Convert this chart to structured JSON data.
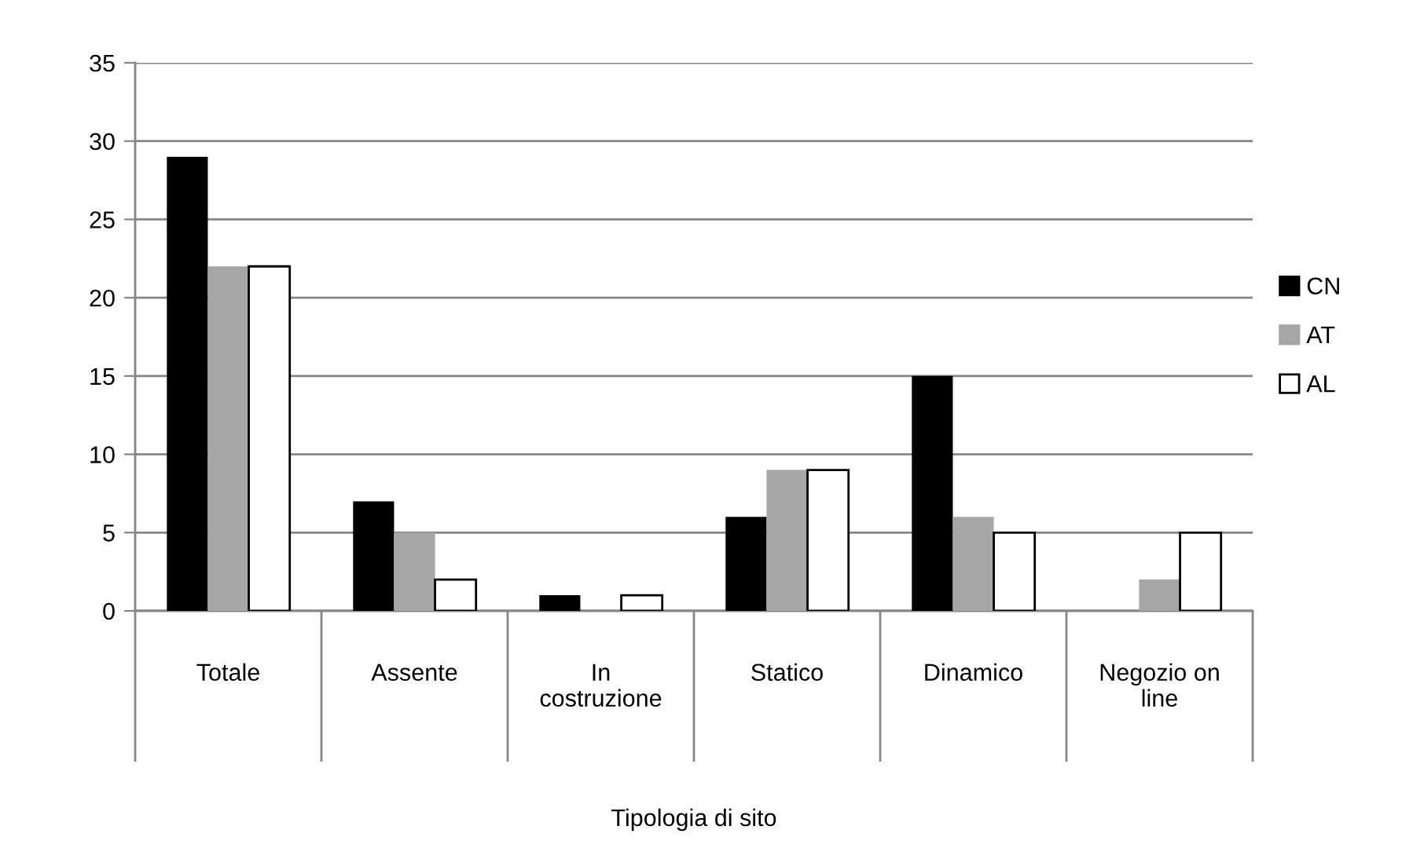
{
  "chart_data": {
    "type": "bar",
    "xlabel": "Tipologia di sito",
    "categories": [
      "Totale",
      "Assente",
      "In costruzione",
      "Statico",
      "Dinamico",
      "Negozio on line"
    ],
    "series": [
      {
        "name": "CN",
        "color": "#000000",
        "values": [
          29,
          7,
          1,
          6,
          15,
          0
        ]
      },
      {
        "name": "AT",
        "color": "#a6a6a6",
        "values": [
          22,
          5,
          0,
          9,
          6,
          2
        ]
      },
      {
        "name": "AL",
        "color": "#ffffff",
        "values": [
          22,
          2,
          1,
          9,
          5,
          5
        ]
      }
    ],
    "ylim": [
      0,
      35
    ],
    "yticks": [
      0,
      5,
      10,
      15,
      20,
      25,
      30,
      35
    ],
    "grid": "y",
    "legend": "right"
  }
}
